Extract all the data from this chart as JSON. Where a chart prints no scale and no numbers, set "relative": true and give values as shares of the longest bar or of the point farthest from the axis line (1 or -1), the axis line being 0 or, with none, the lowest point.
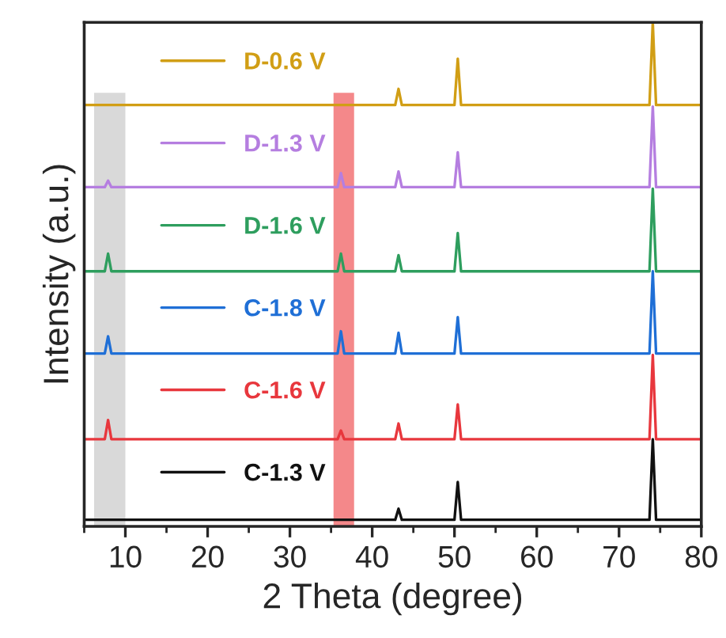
{
  "chart_data": {
    "type": "line",
    "relative": true,
    "xlabel": "2 Theta (degree)",
    "ylabel": "Intensity (a.u.)",
    "xlim": [
      5,
      80
    ],
    "xticks": [
      10,
      20,
      30,
      40,
      50,
      60,
      70,
      80
    ],
    "tick_labels": "x",
    "legend": "top left",
    "grid": false,
    "bands": [
      {
        "axis": "x",
        "from": 6.2,
        "to": 10,
        "color": "#d9d9d9"
      },
      {
        "axis": "x",
        "from": 35.3,
        "to": 37.8,
        "color": "#f4888a"
      }
    ],
    "series": [
      {
        "name": "D-0.6 V",
        "color": "#d19e15",
        "x": [
          5,
          42.8,
          43.2,
          43.6,
          50.0,
          50.4,
          50.8,
          73.7,
          74.1,
          74.5,
          80
        ],
        "values": [
          0.836,
          0.836,
          0.868,
          0.836,
          0.836,
          0.928,
          0.836,
          0.836,
          1.0,
          0.836,
          0.836
        ]
      },
      {
        "name": "D-1.3 V",
        "color": "#b57ee0",
        "x": [
          5,
          7.5,
          7.9,
          8.3,
          35.8,
          36.2,
          36.6,
          42.8,
          43.2,
          43.6,
          50.0,
          50.4,
          50.8,
          73.7,
          74.1,
          74.5,
          80
        ],
        "values": [
          0.673,
          0.673,
          0.686,
          0.673,
          0.673,
          0.701,
          0.673,
          0.673,
          0.704,
          0.673,
          0.673,
          0.742,
          0.673,
          0.673,
          0.833,
          0.673,
          0.673
        ]
      },
      {
        "name": "D-1.6 V",
        "color": "#2e9e5e",
        "x": [
          5,
          7.5,
          7.9,
          8.3,
          35.8,
          36.2,
          36.6,
          42.8,
          43.2,
          43.6,
          50.0,
          50.4,
          50.8,
          73.7,
          74.1,
          74.5,
          80
        ],
        "values": [
          0.506,
          0.506,
          0.541,
          0.506,
          0.506,
          0.541,
          0.506,
          0.506,
          0.538,
          0.506,
          0.506,
          0.582,
          0.506,
          0.506,
          0.67,
          0.506,
          0.506
        ]
      },
      {
        "name": "C-1.8 V",
        "color": "#1f6fd6",
        "x": [
          5,
          7.5,
          7.9,
          8.3,
          35.8,
          36.2,
          36.6,
          42.8,
          43.2,
          43.6,
          50.0,
          50.4,
          50.8,
          73.7,
          74.1,
          74.5,
          80
        ],
        "values": [
          0.343,
          0.343,
          0.377,
          0.343,
          0.343,
          0.387,
          0.343,
          0.343,
          0.384,
          0.343,
          0.343,
          0.415,
          0.343,
          0.343,
          0.506,
          0.343,
          0.343
        ]
      },
      {
        "name": "C-1.6 V",
        "color": "#e8373d",
        "x": [
          5,
          7.5,
          7.9,
          8.3,
          35.8,
          36.2,
          36.6,
          42.8,
          43.2,
          43.6,
          50.0,
          50.4,
          50.8,
          73.7,
          74.1,
          74.5,
          80
        ],
        "values": [
          0.173,
          0.173,
          0.211,
          0.173,
          0.173,
          0.19,
          0.173,
          0.173,
          0.204,
          0.173,
          0.173,
          0.242,
          0.173,
          0.173,
          0.34,
          0.173,
          0.173
        ]
      },
      {
        "name": "C-1.3 V",
        "color": "#111111",
        "x": [
          5,
          42.8,
          43.2,
          43.6,
          50.0,
          50.4,
          50.8,
          73.7,
          74.1,
          74.5,
          80
        ],
        "values": [
          0.013,
          0.013,
          0.035,
          0.013,
          0.013,
          0.088,
          0.013,
          0.013,
          0.173,
          0.013,
          0.013
        ]
      }
    ]
  }
}
